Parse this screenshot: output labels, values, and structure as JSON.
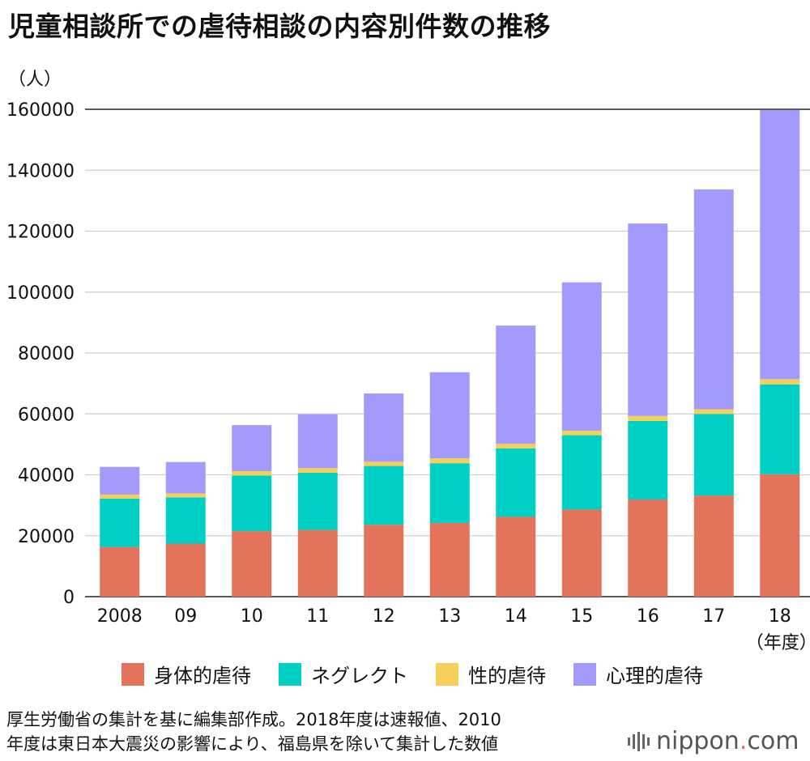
{
  "title": "児童相談所での虐待相談の内容別件数の推移",
  "unit_label": "（人）",
  "x_unit_label": "（年度）",
  "note_line1": "厚生労働省の集計を基に編集部作成。2018年度は速報値、2010",
  "note_line2": "年度は東日本大震災の影響により、福島県を除いて集計した数値",
  "logo": {
    "name": "nippon",
    "dot": ".",
    "tld": "com"
  },
  "chart_data": {
    "type": "bar",
    "stacked": true,
    "categories": [
      "2008",
      "09",
      "10",
      "11",
      "12",
      "13",
      "14",
      "15",
      "16",
      "17",
      "18"
    ],
    "ylim": [
      0,
      160000
    ],
    "yticks": [
      "0",
      "20000",
      "40000",
      "60000",
      "80000",
      "100000",
      "120000",
      "140000",
      "160000"
    ],
    "grid": true,
    "legend_position": "bottom",
    "series": [
      {
        "name": "身体的虐待",
        "color": "#e3735a",
        "values": [
          16300,
          17400,
          21500,
          21900,
          23600,
          24200,
          26200,
          28600,
          31900,
          33200,
          40200
        ]
      },
      {
        "name": "ネグレクト",
        "color": "#00cfc4",
        "values": [
          15900,
          15200,
          18300,
          18800,
          19300,
          19600,
          22500,
          24400,
          25800,
          26800,
          29500
        ]
      },
      {
        "name": "性的虐待",
        "color": "#f5cf5a",
        "values": [
          1300,
          1300,
          1400,
          1500,
          1400,
          1600,
          1500,
          1500,
          1600,
          1500,
          1700
        ]
      },
      {
        "name": "心理的虐待",
        "color": "#a29bfc",
        "values": [
          9100,
          10300,
          15100,
          17700,
          22400,
          28300,
          38800,
          48700,
          63200,
          72200,
          88400
        ]
      }
    ]
  }
}
